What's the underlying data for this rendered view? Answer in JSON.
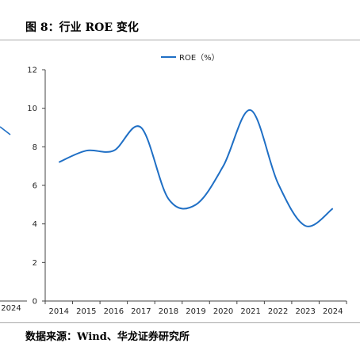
{
  "header": {
    "title": "图 8：行业 ROE 变化"
  },
  "footer": {
    "source": "数据来源：Wind、华龙证券研究所"
  },
  "left_fragment": {
    "x_tick_label": "2024"
  },
  "colors": {
    "series": "#1f6fc5",
    "axis": "#444444",
    "rule": "#a9a9a9"
  },
  "chart_data": {
    "type": "line",
    "title": "",
    "xlabel": "",
    "ylabel": "",
    "x": [
      "2014",
      "2015",
      "2016",
      "2017",
      "2018",
      "2019",
      "2020",
      "2021",
      "2022",
      "2023",
      "2024"
    ],
    "series": [
      {
        "name": "ROE（%）",
        "values": [
          7.2,
          7.8,
          7.8,
          9.0,
          5.3,
          5.0,
          7.0,
          9.9,
          6.1,
          3.9,
          4.8
        ]
      }
    ],
    "ylim": [
      0,
      12
    ],
    "yticks": [
      0,
      2,
      4,
      6,
      8,
      10,
      12
    ],
    "legend": "top-center",
    "grid": false
  }
}
